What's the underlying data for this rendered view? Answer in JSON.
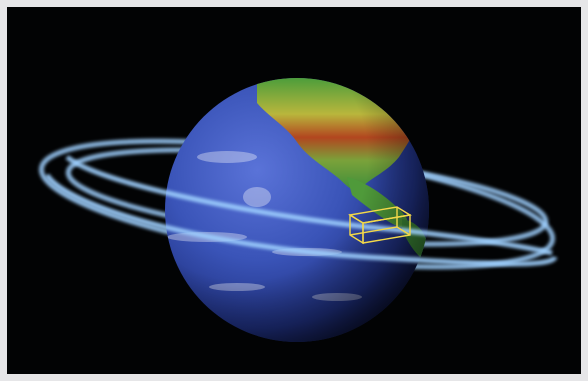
{
  "image": {
    "subject": "earth-with-orbit-rings-and-satellite",
    "colors": {
      "frame": "#e6e6e8",
      "space": "#020304",
      "ocean_dark": "#1d2f7a",
      "ocean_mid": "#3a54b8",
      "land_green": "#4aa43a",
      "land_yellow": "#c9c23a",
      "land_red": "#b23a1c",
      "orbit": "#9fd0ff",
      "satellite": "#f2d84a"
    }
  }
}
